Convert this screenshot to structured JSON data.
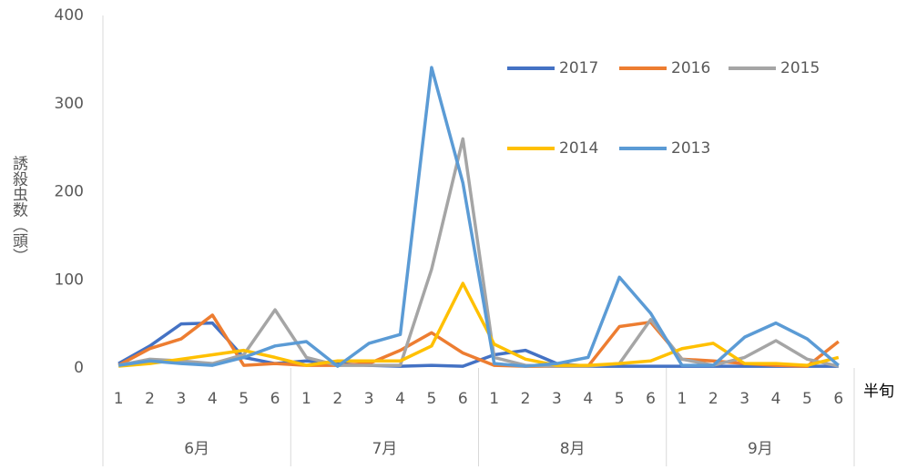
{
  "chart_data": {
    "type": "line",
    "y_label": "誘殺虫数（頭）",
    "x_label": "半旬",
    "categories": [
      "1",
      "2",
      "3",
      "4",
      "5",
      "6",
      "1",
      "2",
      "3",
      "4",
      "5",
      "6",
      "1",
      "2",
      "3",
      "4",
      "5",
      "6",
      "1",
      "2",
      "3",
      "4",
      "5",
      "6"
    ],
    "groups": [
      "6月",
      "7月",
      "8月",
      "9月"
    ],
    "ylim": [
      0,
      400
    ],
    "yticks": [
      0,
      100,
      200,
      300,
      400
    ],
    "grid": false,
    "series": [
      {
        "name": "2017",
        "color": "#4472c4",
        "values": [
          5,
          25,
          50,
          51,
          12,
          5,
          8,
          5,
          3,
          2,
          3,
          2,
          15,
          20,
          5,
          2,
          2,
          2,
          2,
          2,
          2,
          2,
          2,
          2
        ]
      },
      {
        "name": "2016",
        "color": "#ed7d31",
        "values": [
          3,
          22,
          33,
          60,
          3,
          5,
          3,
          3,
          5,
          20,
          40,
          17,
          3,
          2,
          2,
          2,
          47,
          52,
          10,
          8,
          5,
          3,
          2,
          30
        ]
      },
      {
        "name": "2015",
        "color": "#a5a5a5",
        "values": [
          3,
          10,
          8,
          5,
          15,
          66,
          12,
          3,
          3,
          3,
          112,
          260,
          12,
          3,
          2,
          2,
          5,
          55,
          10,
          3,
          12,
          31,
          10,
          2
        ]
      },
      {
        "name": "2014",
        "color": "#ffc000",
        "values": [
          2,
          5,
          10,
          15,
          20,
          12,
          3,
          8,
          8,
          8,
          25,
          96,
          27,
          10,
          3,
          3,
          5,
          8,
          22,
          28,
          5,
          5,
          3,
          12
        ]
      },
      {
        "name": "2013",
        "color": "#5b9bd5",
        "values": [
          3,
          8,
          5,
          3,
          12,
          25,
          30,
          2,
          28,
          38,
          341,
          210,
          5,
          2,
          5,
          12,
          103,
          62,
          3,
          3,
          35,
          51,
          33,
          3
        ]
      }
    ]
  }
}
